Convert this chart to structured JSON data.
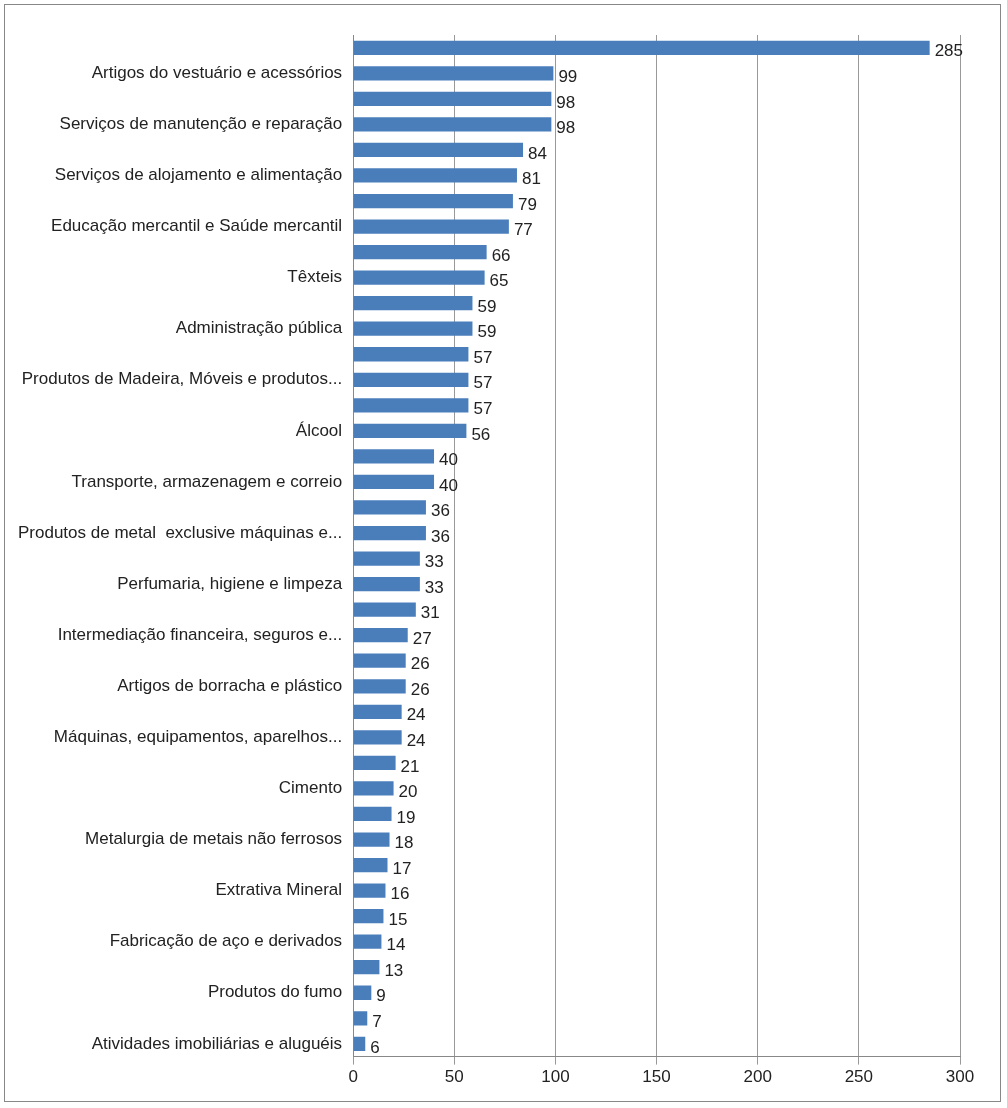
{
  "chart_data": {
    "type": "bar",
    "orientation": "horizontal",
    "categories": [
      null,
      "Artigos do vestuário e acessórios",
      null,
      "Serviços de manutenção e reparação",
      null,
      "Serviços de alojamento e alimentação",
      null,
      "Educação mercantil e Saúde mercantil",
      null,
      "Têxteis",
      null,
      "Administração pública",
      null,
      "Produtos de Madeira, Móveis e produtos...",
      null,
      "Álcool",
      null,
      "Transporte, armazenagem e correio",
      null,
      "Produtos de metal  exclusive máquinas e...",
      null,
      "Perfumaria, higiene e limpeza",
      null,
      "Intermediação financeira, seguros e...",
      null,
      "Artigos de borracha e plástico",
      null,
      "Máquinas, equipamentos, aparelhos...",
      null,
      "Cimento",
      null,
      "Metalurgia de metais não ferrosos",
      null,
      "Extrativa Mineral",
      null,
      "Fabricação de aço e derivados",
      null,
      "Produtos do fumo",
      null,
      "Atividades imobiliárias e aluguéis"
    ],
    "values": [
      285,
      99,
      98,
      98,
      84,
      81,
      79,
      77,
      66,
      65,
      59,
      59,
      57,
      57,
      57,
      56,
      40,
      40,
      36,
      36,
      33,
      33,
      31,
      27,
      26,
      26,
      24,
      24,
      21,
      20,
      19,
      18,
      17,
      16,
      15,
      14,
      13,
      9,
      7,
      6
    ],
    "color": "#4a7ebb",
    "xlim": [
      0,
      300
    ],
    "xticks": [
      0,
      50,
      100,
      150,
      200,
      250,
      300
    ],
    "grid": "x",
    "data_labels": true
  }
}
